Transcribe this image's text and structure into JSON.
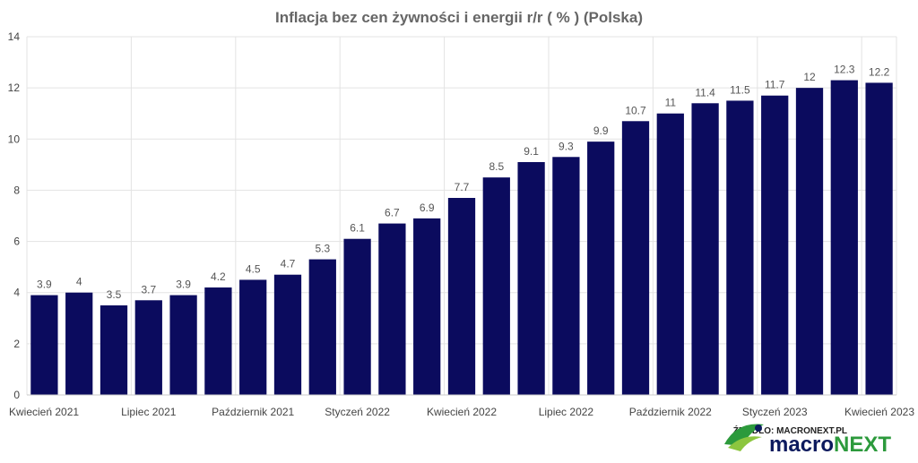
{
  "chart_data": {
    "type": "bar",
    "title": "Inflacja bez cen żywności i energii r/r ( % ) (Polska)",
    "xlabel": "",
    "ylabel": "",
    "ylim": [
      0,
      14
    ],
    "yticks": [
      0,
      2,
      4,
      6,
      8,
      10,
      12,
      14
    ],
    "grid": true,
    "bar_color": "#0b0b5e",
    "x_tick_labels": [
      {
        "index": 0,
        "label": "Kwiecień 2021"
      },
      {
        "index": 3,
        "label": "Lipiec 2021"
      },
      {
        "index": 6,
        "label": "Październik 2021"
      },
      {
        "index": 9,
        "label": "Styczeń 2022"
      },
      {
        "index": 12,
        "label": "Kwiecień 2022"
      },
      {
        "index": 15,
        "label": "Lipiec 2022"
      },
      {
        "index": 18,
        "label": "Październik 2022"
      },
      {
        "index": 21,
        "label": "Styczeń 2023"
      },
      {
        "index": 24,
        "label": "Kwiecień 2023"
      }
    ],
    "values": [
      3.9,
      4,
      3.5,
      3.7,
      3.9,
      4.2,
      4.5,
      4.7,
      5.3,
      6.1,
      6.7,
      6.9,
      7.7,
      8.5,
      9.1,
      9.3,
      9.9,
      10.7,
      11,
      11.4,
      11.5,
      11.7,
      12,
      12.3,
      12.2
    ]
  },
  "source": {
    "label": "ŹRÓDŁO: MACRONEXT.PL",
    "brand_part1": "macro",
    "brand_part2": "NEXT",
    "brand_color_dark": "#0c1a5e",
    "brand_color_green": "#2c9a3c"
  }
}
